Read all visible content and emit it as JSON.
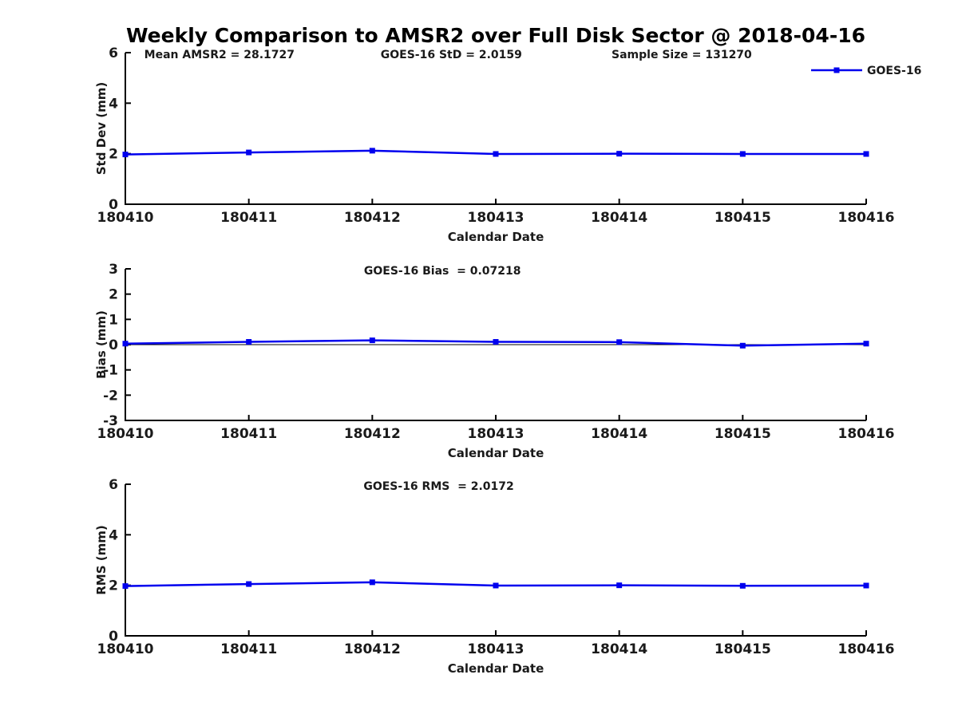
{
  "title": "Weekly Comparison to AMSR2 over Full Disk Sector @ 2018-04-16",
  "colors": {
    "series": "#0000ee",
    "axis": "#000000",
    "text": "#1a1a1a"
  },
  "chart_data": {
    "type": "line",
    "categories": [
      "180410",
      "180411",
      "180412",
      "180413",
      "180414",
      "180415",
      "180416"
    ],
    "xlabel": "Calendar Date",
    "legend": {
      "label": "GOES-16",
      "position": "top-right",
      "marker": "filled-square"
    },
    "grid": false,
    "subplots": [
      {
        "name": "std-dev",
        "ylabel": "Std Dev (mm)",
        "ylim": [
          0,
          6
        ],
        "yticks": [
          0,
          2,
          4,
          6
        ],
        "series": [
          {
            "name": "GOES-16",
            "values": [
              1.97,
              2.05,
              2.12,
              1.99,
              2.0,
              1.99,
              1.99
            ]
          }
        ],
        "annotations": [
          {
            "text": "Mean AMSR2 = 28.1727",
            "xfrac": 0.127
          },
          {
            "text": "GOES-16 StD = 2.0159",
            "xfrac": 0.44
          },
          {
            "text": "Sample Size = 131270",
            "xfrac": 0.751
          }
        ],
        "zero_line": false,
        "show_legend": true
      },
      {
        "name": "bias",
        "ylabel": "Bias (mm)",
        "ylim": [
          -3,
          3
        ],
        "yticks": [
          -3,
          -2,
          -1,
          0,
          1,
          2,
          3
        ],
        "series": [
          {
            "name": "GOES-16",
            "values": [
              0.04,
              0.11,
              0.17,
              0.11,
              0.1,
              -0.04,
              0.04
            ]
          }
        ],
        "annotations": [
          {
            "text": "GOES-16 Bias  = 0.07218",
            "xfrac": 0.428
          }
        ],
        "zero_line": true,
        "show_legend": false
      },
      {
        "name": "rms",
        "ylabel": "RMS (mm)",
        "ylim": [
          0,
          6
        ],
        "yticks": [
          0,
          2,
          4,
          6
        ],
        "series": [
          {
            "name": "GOES-16",
            "values": [
              1.97,
              2.05,
              2.12,
              1.99,
              2.0,
              1.98,
              1.99
            ]
          }
        ],
        "annotations": [
          {
            "text": "GOES-16 RMS  = 2.0172",
            "xfrac": 0.423
          }
        ],
        "zero_line": false,
        "show_legend": false
      }
    ]
  }
}
